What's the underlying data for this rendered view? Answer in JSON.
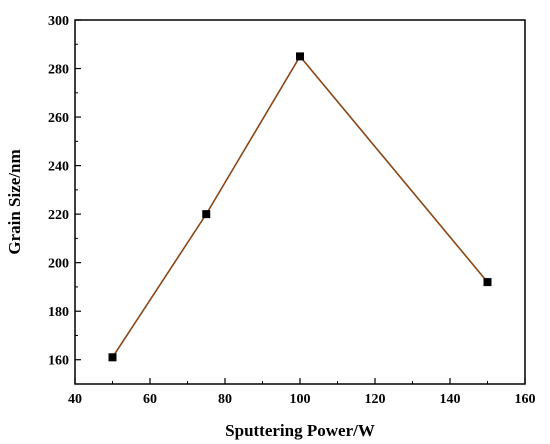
{
  "chart_data": {
    "type": "line",
    "title": "",
    "xlabel": "Sputtering Power/W",
    "ylabel": "Grain Size/nm",
    "xlim": [
      40,
      160
    ],
    "ylim": [
      150,
      300
    ],
    "xticks": [
      40,
      60,
      80,
      100,
      120,
      140,
      160
    ],
    "yticks": [
      160,
      180,
      200,
      220,
      240,
      260,
      280,
      300
    ],
    "grid": false,
    "legend": "none",
    "series": [
      {
        "x": [
          50,
          75,
          100,
          150
        ],
        "y": [
          161,
          220,
          285,
          192
        ],
        "line_color": "#8b4513",
        "marker": "square",
        "marker_color": "#000000"
      }
    ]
  }
}
